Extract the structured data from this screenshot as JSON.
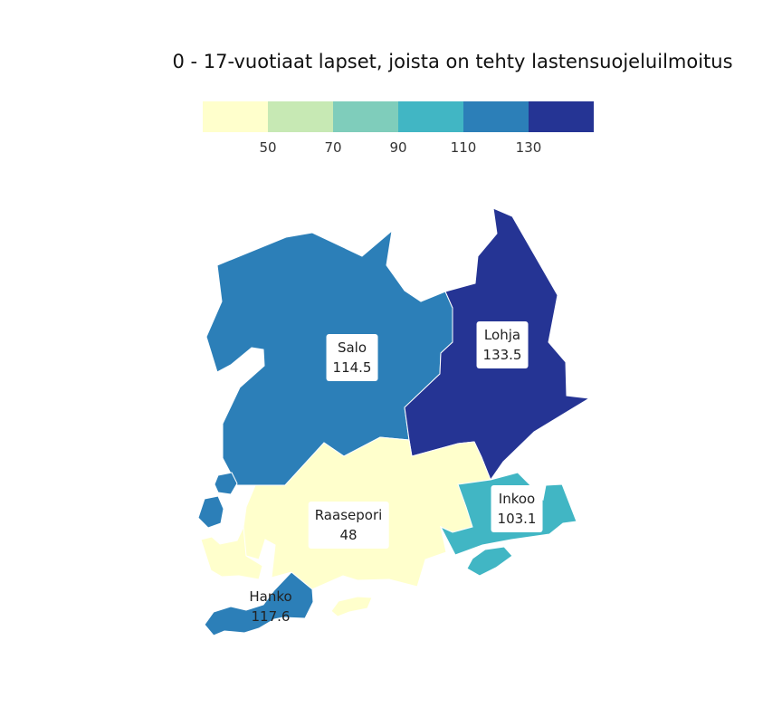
{
  "title": "0 - 17-vuotiaat lapset, joista on tehty lastensuojeluilmoitus",
  "legend": {
    "colors": [
      "#ffffcc",
      "#c7e9b4",
      "#7fcdbb",
      "#41b6c4",
      "#2c7fb8",
      "#253494"
    ],
    "ticks": [
      "50",
      "70",
      "90",
      "110",
      "130"
    ]
  },
  "regions": [
    {
      "name": "Salo",
      "value": "114.5",
      "color": "#2c7fb8"
    },
    {
      "name": "Lohja",
      "value": "133.5",
      "color": "#253494"
    },
    {
      "name": "Raasepori",
      "value": "48",
      "color": "#ffffcc"
    },
    {
      "name": "Inkoo",
      "value": "103.1",
      "color": "#41b6c4"
    },
    {
      "name": "Hanko",
      "value": "117.6",
      "color": "#2c7fb8"
    }
  ]
}
